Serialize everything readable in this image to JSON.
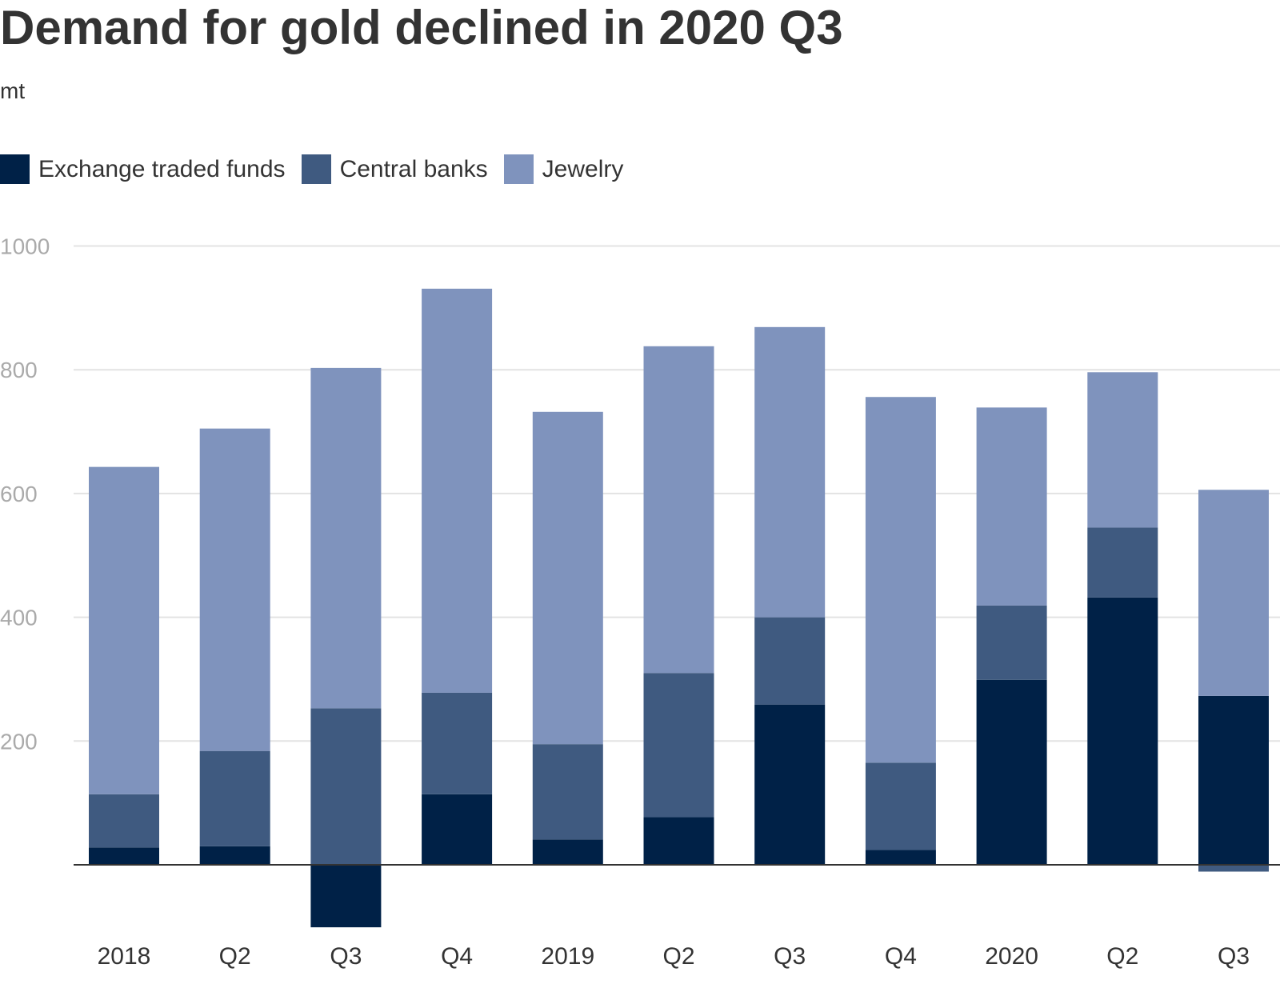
{
  "chart_data": {
    "type": "bar",
    "stacked": true,
    "title": "Demand for gold declined in 2020 Q3",
    "subtitle": "mt",
    "categories": [
      "2018",
      "Q2",
      "Q3",
      "Q4",
      "2019",
      "Q2",
      "Q3",
      "Q4",
      "2020",
      "Q2",
      "Q3"
    ],
    "series": [
      {
        "name": "Exchange traded funds",
        "color": "#002147",
        "values": [
          28,
          30,
          -101,
          114,
          41,
          77,
          259,
          24,
          299,
          432,
          273
        ]
      },
      {
        "name": "Central banks",
        "color": "#3f5a80",
        "values": [
          86,
          154,
          253,
          164,
          154,
          233,
          141,
          141,
          120,
          113,
          -11
        ]
      },
      {
        "name": "Jewelry",
        "color": "#7f93bd",
        "values": [
          529,
          521,
          550,
          653,
          537,
          528,
          469,
          591,
          320,
          251,
          333
        ]
      }
    ],
    "ylim": [
      -130,
      1000
    ],
    "yticks": [
      200,
      400,
      600,
      800,
      1000
    ],
    "grid": true,
    "legend_position": "top-left"
  }
}
